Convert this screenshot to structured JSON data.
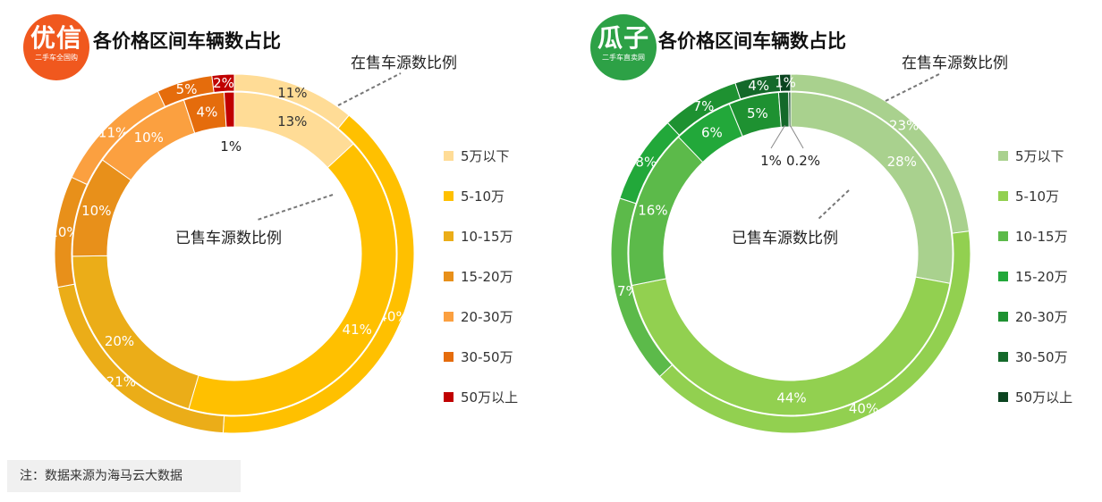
{
  "note": "注：数据来源为海马云大数据",
  "chart_data": [
    {
      "type": "donut",
      "title": "各价格区间车辆数占比",
      "logo": {
        "main": "优信",
        "sub": "二手车全国购",
        "color": "#f0581e"
      },
      "categories": [
        "5万以下",
        "5-10万",
        "10-15万",
        "15-20万",
        "20-30万",
        "30-50万",
        "50万以上"
      ],
      "colors": [
        "#ffdc96",
        "#ffc000",
        "#ebad18",
        "#e8901a",
        "#fba040",
        "#e56c0c",
        "#c00000"
      ],
      "series": [
        {
          "name": "在售车源数比例",
          "ring": "outer",
          "values": [
            11,
            40,
            21,
            10,
            11,
            5,
            2
          ],
          "labels": [
            "11%",
            "40%",
            "21%",
            "10%",
            "11%",
            "5%",
            "2%"
          ]
        },
        {
          "name": "已售车源数比例",
          "ring": "inner",
          "values": [
            13,
            41,
            20,
            10,
            10,
            4,
            1
          ],
          "labels": [
            "13%",
            "41%",
            "20%",
            "10%",
            "10%",
            "4%",
            "1%"
          ]
        }
      ]
    },
    {
      "type": "donut",
      "title": "各价格区间车辆数占比",
      "logo": {
        "main": "瓜子",
        "sub": "二手车直卖网",
        "color": "#2da146"
      },
      "categories": [
        "5万以下",
        "5-10万",
        "10-15万",
        "15-20万",
        "20-30万",
        "30-50万",
        "50万以上"
      ],
      "colors": [
        "#a9d18e",
        "#92d050",
        "#5cba4a",
        "#22a83a",
        "#1e9131",
        "#14692a",
        "#0b4420"
      ],
      "series": [
        {
          "name": "在售车源数比例",
          "ring": "outer",
          "values": [
            23,
            40,
            17,
            8,
            7,
            4,
            1
          ],
          "labels": [
            "23%",
            "40%",
            "17%",
            "8%",
            "7%",
            "4%",
            "1%"
          ]
        },
        {
          "name": "已售车源数比例",
          "ring": "inner",
          "values": [
            28,
            44,
            16,
            6,
            5,
            1,
            0.2
          ],
          "labels": [
            "28%",
            "44%",
            "16%",
            "6%",
            "5%",
            "1%",
            "0.2%"
          ]
        }
      ]
    }
  ]
}
